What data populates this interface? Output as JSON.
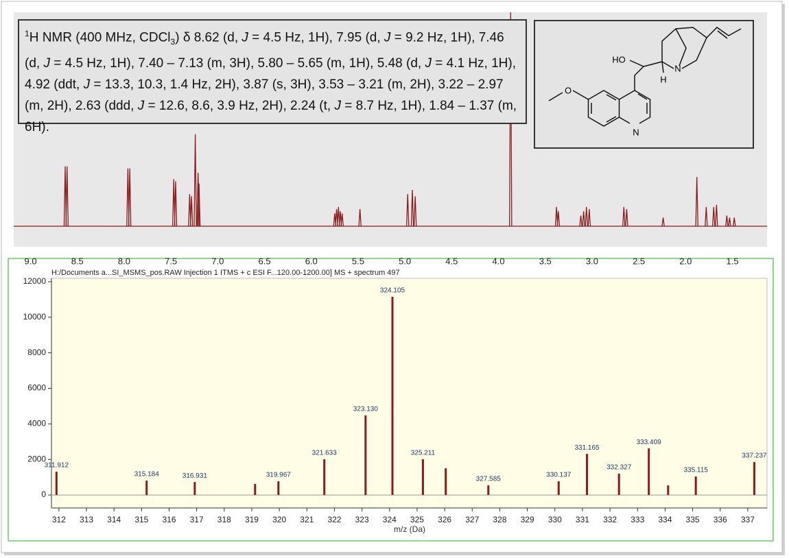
{
  "chart_data": [
    {
      "type": "spectrum",
      "annotation": [
        "1",
        "H NMR (400 MHz, CDCl",
        "3",
        ") δ 8.62 (d, ",
        "J",
        " = 4.5 Hz, 1H), 7.95 (d, ",
        "J",
        " = 9.2 Hz, 1H), 7.46 (d, ",
        "J",
        " = 4.5 Hz, 1H), 7.40 – 7.13 (m, 3H), 5.80 – 5.65 (m, 1H), 5.48 (d, ",
        "J",
        " = 4.1 Hz, 1H), 4.92 (ddt, ",
        "J",
        " = 13.3, 10.3, 1.4 Hz, 2H), 3.87 (s, 3H), 3.53 – 3.21 (m, 2H), 3.22 – 2.97 (m, 2H), 2.63 (ddd, ",
        "J",
        " = 12.6, 8.6, 3.9 Hz, 2H), 2.24 (t, ",
        "J",
        " = 8.7 Hz, 1H), 1.84 – 1.37 (m, 6H)."
      ],
      "structure_labels": [
        "HO",
        "H",
        "N",
        "N"
      ],
      "x": [
        8.63,
        8.61,
        7.96,
        7.94,
        7.47,
        7.45,
        7.3,
        7.28,
        7.24,
        7.21,
        7.2,
        5.75,
        5.73,
        5.71,
        5.69,
        5.67,
        5.48,
        4.97,
        4.92,
        4.89,
        3.87,
        3.38,
        3.36,
        3.12,
        3.09,
        3.06,
        3.03,
        2.66,
        2.63,
        2.24,
        1.88,
        1.78,
        1.7,
        1.67,
        1.56,
        1.53,
        1.48
      ],
      "values": [
        28,
        28,
        27,
        27,
        22,
        21,
        15,
        14,
        43,
        25,
        20,
        6,
        8,
        9,
        7,
        6,
        8,
        15,
        17,
        14,
        100,
        9,
        7,
        5,
        7,
        9,
        8,
        9,
        8,
        4,
        23,
        9,
        9,
        10,
        5,
        4,
        4
      ],
      "color": "#8b1a1a",
      "xlim": [
        9.18,
        1.13
      ],
      "ylim": [
        0,
        100
      ],
      "xticks": [
        {
          "value": 9,
          "label": "9.0"
        },
        8.5,
        {
          "value": 8,
          "label": "8.0"
        },
        7.5,
        {
          "value": 7,
          "label": "7.0"
        },
        6.5,
        {
          "value": 6,
          "label": "6.0"
        },
        5.5,
        {
          "value": 5,
          "label": "5.0"
        },
        4.5,
        {
          "value": 4,
          "label": "4.0"
        },
        3.5,
        {
          "value": 3,
          "label": "3.0"
        },
        2.5,
        {
          "value": 2,
          "label": "2.0"
        },
        1.5
      ]
    },
    {
      "type": "bar",
      "title": "H:/Documents a...SI_MSMS_pos.RAW Injection 1 ITMS + c ESI F...120.00-1200.00] MS + spectrum 497",
      "xlabel": "m/z (Da)",
      "x": [
        311.912,
        315.184,
        316.931,
        319.12,
        319.967,
        321.633,
        323.13,
        324.105,
        325.211,
        326.04,
        327.585,
        330.137,
        331.165,
        332.327,
        333.409,
        334.11,
        335.115,
        337.237
      ],
      "values": [
        1310,
        810,
        730,
        620,
        770,
        2010,
        4480,
        11150,
        2010,
        1500,
        540,
        770,
        2310,
        1200,
        2620,
        540,
        1040,
        1850
      ],
      "labels": [
        "311.912",
        "315.184",
        "316.931",
        null,
        "319.967",
        "321.633",
        "323.130",
        "324.105",
        "325.211",
        null,
        "327.585",
        "330.137",
        "331.165",
        "332.327",
        "333.409",
        null,
        "335.115",
        "337.237"
      ],
      "color": "#8b1a1a",
      "xlim": [
        311.73,
        337.7
      ],
      "ylim": [
        -730,
        12190
      ],
      "xticks": [
        312,
        313,
        314,
        315,
        316,
        317,
        318,
        319,
        320,
        321,
        322,
        323,
        324,
        325,
        326,
        327,
        328,
        329,
        330,
        331,
        332,
        333,
        334,
        335,
        336,
        337
      ],
      "yticks": [
        0,
        2000,
        4000,
        6000,
        8000,
        10000,
        12000
      ]
    }
  ]
}
